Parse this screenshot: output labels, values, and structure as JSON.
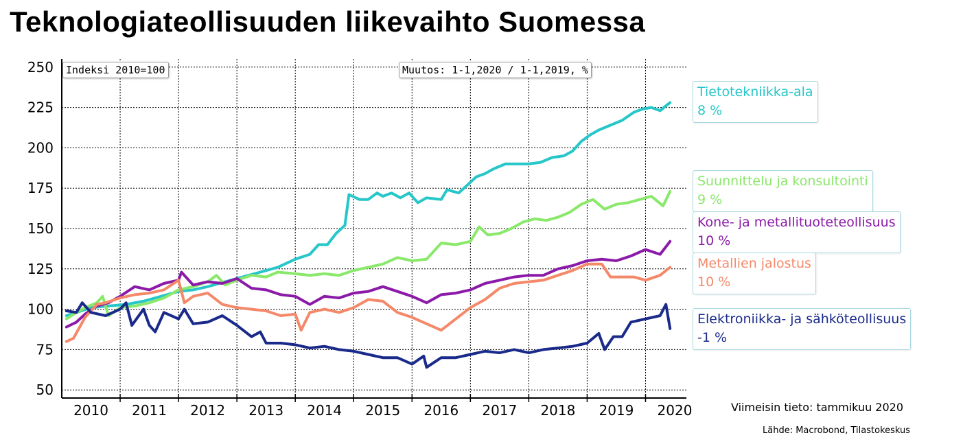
{
  "title": "Teknologiateollisuuden liikevaihto Suomessa",
  "index_label": "Indeksi 2010=100",
  "change_label": "Muutos: 1-1,2020 / 1-1,2019, %",
  "latest_note": "Viimeisin tieto: tammikuu 2020",
  "source_note": "Lähde: Macrobond, Tilastokeskus",
  "chart_data": {
    "type": "line",
    "title": "Teknologiateollisuuden liikevaihto Suomessa",
    "ylim": [
      45,
      255
    ],
    "yticks": [
      50,
      75,
      100,
      125,
      150,
      175,
      200,
      225,
      250
    ],
    "xlim": [
      2009.5,
      2020.2
    ],
    "xticks": [
      "2010",
      "2011",
      "2012",
      "2013",
      "2014",
      "2015",
      "2016",
      "2017",
      "2018",
      "2019",
      "2020"
    ],
    "grid": true,
    "series": [
      {
        "name": "Tietotekniikka-ala",
        "change": "8 %",
        "color": "#26c6c9",
        "points": [
          [
            2009.58,
            96
          ],
          [
            2009.75,
            98
          ],
          [
            2010.0,
            101
          ],
          [
            2010.3,
            102
          ],
          [
            2010.6,
            103
          ],
          [
            2010.9,
            105
          ],
          [
            2011.2,
            108
          ],
          [
            2011.5,
            111
          ],
          [
            2011.75,
            112
          ],
          [
            2012.0,
            114
          ],
          [
            2012.3,
            117
          ],
          [
            2012.6,
            120
          ],
          [
            2012.9,
            123
          ],
          [
            2013.2,
            126
          ],
          [
            2013.5,
            131
          ],
          [
            2013.75,
            134
          ],
          [
            2013.9,
            140
          ],
          [
            2014.05,
            140
          ],
          [
            2014.2,
            147
          ],
          [
            2014.35,
            152
          ],
          [
            2014.42,
            171
          ],
          [
            2014.6,
            168
          ],
          [
            2014.75,
            168
          ],
          [
            2014.9,
            172
          ],
          [
            2015.0,
            170
          ],
          [
            2015.15,
            172
          ],
          [
            2015.3,
            169
          ],
          [
            2015.45,
            172
          ],
          [
            2015.6,
            166
          ],
          [
            2015.75,
            169
          ],
          [
            2016.0,
            168
          ],
          [
            2016.1,
            174
          ],
          [
            2016.3,
            172
          ],
          [
            2016.45,
            177
          ],
          [
            2016.6,
            182
          ],
          [
            2016.75,
            184
          ],
          [
            2016.9,
            187
          ],
          [
            2017.1,
            190
          ],
          [
            2017.3,
            190
          ],
          [
            2017.5,
            190
          ],
          [
            2017.7,
            191
          ],
          [
            2017.9,
            194
          ],
          [
            2018.1,
            195
          ],
          [
            2018.25,
            198
          ],
          [
            2018.4,
            204
          ],
          [
            2018.55,
            208
          ],
          [
            2018.7,
            211
          ],
          [
            2018.9,
            214
          ],
          [
            2019.1,
            217
          ],
          [
            2019.3,
            222
          ],
          [
            2019.45,
            224
          ],
          [
            2019.6,
            225
          ],
          [
            2019.75,
            223
          ],
          [
            2019.85,
            226
          ],
          [
            2019.92,
            228
          ]
        ]
      },
      {
        "name": "Suunnittelu ja konsultointi",
        "change": "9 %",
        "color": "#8ae86a",
        "points": [
          [
            2009.58,
            94
          ],
          [
            2009.75,
            98
          ],
          [
            2009.9,
            101
          ],
          [
            2010.1,
            104
          ],
          [
            2010.2,
            108
          ],
          [
            2010.3,
            96
          ],
          [
            2010.5,
            101
          ],
          [
            2010.75,
            102
          ],
          [
            2011.0,
            104
          ],
          [
            2011.25,
            107
          ],
          [
            2011.5,
            112
          ],
          [
            2011.75,
            114
          ],
          [
            2012.0,
            117
          ],
          [
            2012.15,
            121
          ],
          [
            2012.3,
            115
          ],
          [
            2012.5,
            118
          ],
          [
            2012.75,
            121
          ],
          [
            2013.0,
            120
          ],
          [
            2013.2,
            123
          ],
          [
            2013.5,
            122
          ],
          [
            2013.75,
            121
          ],
          [
            2014.0,
            122
          ],
          [
            2014.25,
            121
          ],
          [
            2014.5,
            124
          ],
          [
            2014.75,
            126
          ],
          [
            2015.0,
            128
          ],
          [
            2015.25,
            132
          ],
          [
            2015.5,
            130
          ],
          [
            2015.75,
            131
          ],
          [
            2016.0,
            141
          ],
          [
            2016.25,
            140
          ],
          [
            2016.5,
            142
          ],
          [
            2016.65,
            151
          ],
          [
            2016.8,
            146
          ],
          [
            2017.0,
            147
          ],
          [
            2017.2,
            150
          ],
          [
            2017.4,
            154
          ],
          [
            2017.6,
            156
          ],
          [
            2017.8,
            155
          ],
          [
            2018.0,
            157
          ],
          [
            2018.2,
            160
          ],
          [
            2018.4,
            165
          ],
          [
            2018.6,
            168
          ],
          [
            2018.8,
            162
          ],
          [
            2019.0,
            165
          ],
          [
            2019.2,
            166
          ],
          [
            2019.4,
            168
          ],
          [
            2019.6,
            170
          ],
          [
            2019.8,
            164
          ],
          [
            2019.92,
            173
          ]
        ]
      },
      {
        "name": "Kone- ja metallituoteteollisuus",
        "change": "10 %",
        "color": "#8b1aa8",
        "points": [
          [
            2009.58,
            89
          ],
          [
            2009.75,
            92
          ],
          [
            2009.9,
            97
          ],
          [
            2010.1,
            102
          ],
          [
            2010.3,
            104
          ],
          [
            2010.5,
            108
          ],
          [
            2010.75,
            114
          ],
          [
            2011.0,
            112
          ],
          [
            2011.25,
            116
          ],
          [
            2011.5,
            118
          ],
          [
            2011.55,
            123
          ],
          [
            2011.75,
            115
          ],
          [
            2012.0,
            117
          ],
          [
            2012.25,
            116
          ],
          [
            2012.5,
            119
          ],
          [
            2012.75,
            113
          ],
          [
            2013.0,
            112
          ],
          [
            2013.25,
            109
          ],
          [
            2013.5,
            108
          ],
          [
            2013.75,
            103
          ],
          [
            2014.0,
            108
          ],
          [
            2014.25,
            107
          ],
          [
            2014.5,
            110
          ],
          [
            2014.75,
            111
          ],
          [
            2015.0,
            114
          ],
          [
            2015.25,
            111
          ],
          [
            2015.5,
            108
          ],
          [
            2015.75,
            104
          ],
          [
            2016.0,
            109
          ],
          [
            2016.25,
            110
          ],
          [
            2016.5,
            112
          ],
          [
            2016.75,
            116
          ],
          [
            2017.0,
            118
          ],
          [
            2017.25,
            120
          ],
          [
            2017.5,
            121
          ],
          [
            2017.75,
            121
          ],
          [
            2018.0,
            125
          ],
          [
            2018.25,
            127
          ],
          [
            2018.5,
            130
          ],
          [
            2018.75,
            131
          ],
          [
            2019.0,
            130
          ],
          [
            2019.25,
            133
          ],
          [
            2019.5,
            137
          ],
          [
            2019.75,
            134
          ],
          [
            2019.92,
            142
          ]
        ]
      },
      {
        "name": "Metallien jalostus",
        "change": "10 %",
        "color": "#f4896a",
        "points": [
          [
            2009.58,
            80
          ],
          [
            2009.7,
            82
          ],
          [
            2009.9,
            95
          ],
          [
            2010.1,
            103
          ],
          [
            2010.25,
            104
          ],
          [
            2010.5,
            107
          ],
          [
            2010.75,
            109
          ],
          [
            2011.0,
            110
          ],
          [
            2011.25,
            112
          ],
          [
            2011.5,
            118
          ],
          [
            2011.6,
            104
          ],
          [
            2011.75,
            108
          ],
          [
            2012.0,
            110
          ],
          [
            2012.25,
            103
          ],
          [
            2012.5,
            101
          ],
          [
            2012.75,
            100
          ],
          [
            2013.0,
            99
          ],
          [
            2013.25,
            96
          ],
          [
            2013.5,
            97
          ],
          [
            2013.6,
            87
          ],
          [
            2013.75,
            98
          ],
          [
            2014.0,
            100
          ],
          [
            2014.25,
            98
          ],
          [
            2014.5,
            101
          ],
          [
            2014.75,
            106
          ],
          [
            2015.0,
            105
          ],
          [
            2015.25,
            98
          ],
          [
            2015.5,
            95
          ],
          [
            2015.75,
            91
          ],
          [
            2016.0,
            87
          ],
          [
            2016.25,
            94
          ],
          [
            2016.5,
            101
          ],
          [
            2016.75,
            106
          ],
          [
            2017.0,
            113
          ],
          [
            2017.25,
            116
          ],
          [
            2017.5,
            117
          ],
          [
            2017.75,
            118
          ],
          [
            2018.0,
            121
          ],
          [
            2018.25,
            124
          ],
          [
            2018.5,
            128
          ],
          [
            2018.75,
            128
          ],
          [
            2018.9,
            120
          ],
          [
            2019.1,
            120
          ],
          [
            2019.3,
            120
          ],
          [
            2019.5,
            118
          ],
          [
            2019.75,
            121
          ],
          [
            2019.92,
            126
          ]
        ]
      },
      {
        "name": "Elektroniikka- ja sähköteollisuus",
        "change": "-1 %",
        "color": "#1a2a8a",
        "points": [
          [
            2009.58,
            99
          ],
          [
            2009.75,
            98
          ],
          [
            2009.85,
            104
          ],
          [
            2010.0,
            98
          ],
          [
            2010.25,
            96
          ],
          [
            2010.5,
            100
          ],
          [
            2010.6,
            104
          ],
          [
            2010.7,
            90
          ],
          [
            2010.9,
            100
          ],
          [
            2011.0,
            90
          ],
          [
            2011.1,
            86
          ],
          [
            2011.25,
            98
          ],
          [
            2011.5,
            94
          ],
          [
            2011.6,
            100
          ],
          [
            2011.75,
            91
          ],
          [
            2012.0,
            92
          ],
          [
            2012.25,
            96
          ],
          [
            2012.5,
            90
          ],
          [
            2012.75,
            83
          ],
          [
            2012.9,
            86
          ],
          [
            2013.0,
            79
          ],
          [
            2013.25,
            79
          ],
          [
            2013.5,
            78
          ],
          [
            2013.75,
            76
          ],
          [
            2014.0,
            77
          ],
          [
            2014.25,
            75
          ],
          [
            2014.5,
            74
          ],
          [
            2014.75,
            72
          ],
          [
            2015.0,
            70
          ],
          [
            2015.25,
            70
          ],
          [
            2015.5,
            66
          ],
          [
            2015.7,
            71
          ],
          [
            2015.75,
            64
          ],
          [
            2016.0,
            70
          ],
          [
            2016.25,
            70
          ],
          [
            2016.5,
            72
          ],
          [
            2016.75,
            74
          ],
          [
            2017.0,
            73
          ],
          [
            2017.25,
            75
          ],
          [
            2017.5,
            73
          ],
          [
            2017.75,
            75
          ],
          [
            2018.0,
            76
          ],
          [
            2018.25,
            77
          ],
          [
            2018.5,
            79
          ],
          [
            2018.7,
            85
          ],
          [
            2018.8,
            75
          ],
          [
            2018.95,
            83
          ],
          [
            2019.1,
            83
          ],
          [
            2019.25,
            92
          ],
          [
            2019.5,
            94
          ],
          [
            2019.75,
            96
          ],
          [
            2019.85,
            103
          ],
          [
            2019.92,
            88
          ]
        ]
      }
    ]
  }
}
